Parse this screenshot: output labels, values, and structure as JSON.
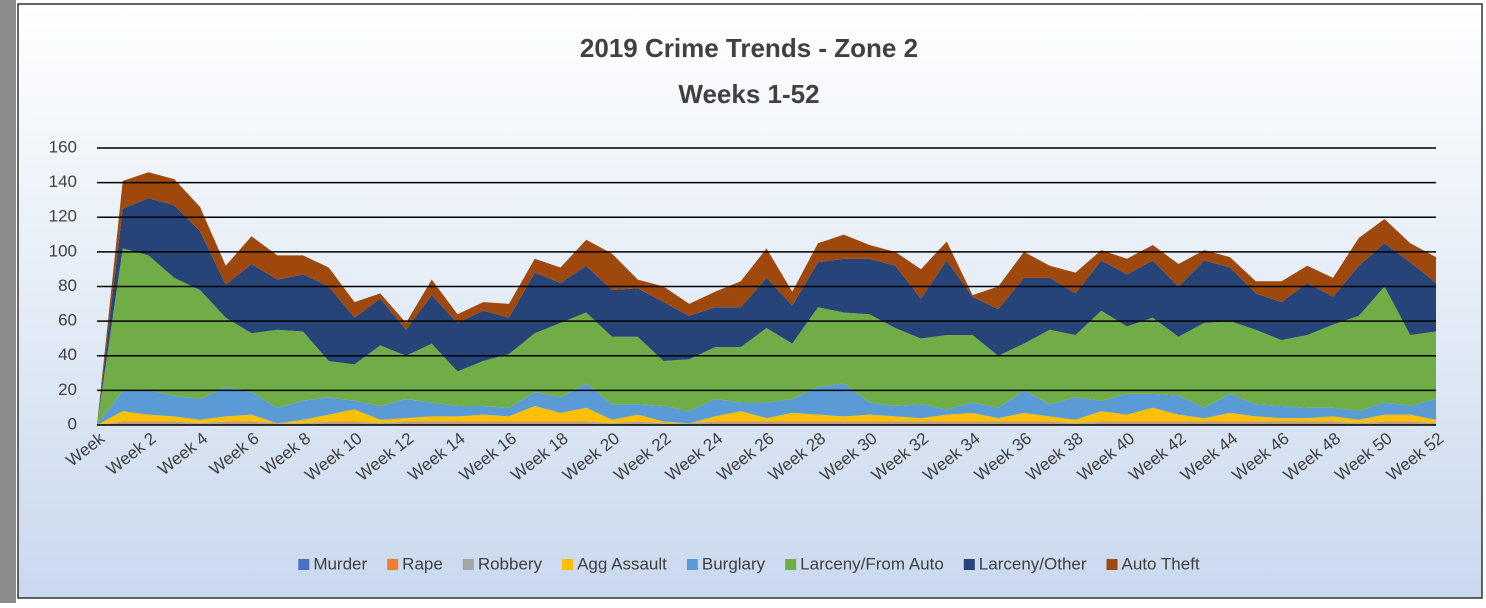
{
  "chart_data": {
    "type": "stacked_area",
    "title": "2019 Crime Trends - Zone 2",
    "subtitle": "Weeks 1-52",
    "categories": [
      "Week",
      null,
      "Week 2",
      null,
      "Week 4",
      null,
      "Week 6",
      null,
      "Week 8",
      null,
      "Week 10",
      null,
      "Week 12",
      null,
      "Week 14",
      null,
      "Week 16",
      null,
      "Week 18",
      null,
      "Week 20",
      null,
      "Week 22",
      null,
      "Week 24",
      null,
      "Week 26",
      null,
      "Week 28",
      null,
      "Week 30",
      null,
      "Week 32",
      null,
      "Week 34",
      null,
      "Week 36",
      null,
      "Week 38",
      null,
      "Week 40",
      null,
      "Week 42",
      null,
      "Week 44",
      null,
      "Week 46",
      null,
      "Week 48",
      null,
      "Week 50",
      null,
      "Week 52"
    ],
    "series": [
      {
        "name": "Murder",
        "color": "#4472c4",
        "values": [
          0,
          0,
          0,
          0,
          0,
          0,
          0,
          0,
          0,
          0,
          0,
          0,
          0,
          0,
          0,
          0,
          0,
          0,
          0,
          0,
          0,
          0,
          0,
          0,
          0,
          0,
          0,
          0,
          0,
          0,
          0,
          0,
          0,
          0,
          0,
          0,
          0,
          0,
          0,
          0,
          0,
          0,
          0,
          0,
          0,
          0,
          0,
          0,
          0,
          0,
          0,
          0,
          0
        ]
      },
      {
        "name": "Rape",
        "color": "#ed7d31",
        "values": [
          0,
          1,
          1,
          1,
          0,
          1,
          1,
          0,
          0,
          1,
          1,
          0,
          1,
          1,
          1,
          1,
          1,
          1,
          1,
          1,
          0,
          1,
          0,
          0,
          1,
          1,
          1,
          1,
          1,
          1,
          1,
          1,
          1,
          1,
          1,
          1,
          1,
          1,
          0,
          1,
          1,
          1,
          1,
          1,
          1,
          1,
          1,
          1,
          1,
          0,
          1,
          1,
          0
        ]
      },
      {
        "name": "Robbery",
        "color": "#a5a5a5",
        "values": [
          0,
          1,
          1,
          1,
          1,
          1,
          1,
          1,
          1,
          1,
          1,
          1,
          1,
          1,
          1,
          1,
          1,
          1,
          1,
          1,
          1,
          1,
          1,
          1,
          1,
          1,
          1,
          1,
          1,
          1,
          1,
          1,
          1,
          1,
          1,
          1,
          1,
          1,
          1,
          1,
          1,
          1,
          1,
          1,
          1,
          1,
          1,
          1,
          1,
          1,
          1,
          1,
          1
        ]
      },
      {
        "name": "Agg Assault",
        "color": "#ffc000",
        "values": [
          0,
          6,
          4,
          3,
          2,
          3,
          4,
          0,
          2,
          4,
          7,
          2,
          2,
          3,
          3,
          4,
          3,
          9,
          5,
          8,
          2,
          4,
          1,
          0,
          3,
          6,
          2,
          5,
          4,
          3,
          4,
          3,
          2,
          4,
          5,
          2,
          5,
          3,
          2,
          6,
          4,
          8,
          4,
          2,
          5,
          3,
          2,
          2,
          3,
          2,
          4,
          4,
          2
        ]
      },
      {
        "name": "Burglary",
        "color": "#5b9bd5",
        "values": [
          0,
          12,
          14,
          12,
          12,
          17,
          13,
          9,
          11,
          10,
          5,
          8,
          11,
          8,
          6,
          5,
          5,
          8,
          9,
          14,
          9,
          6,
          9,
          7,
          10,
          5,
          9,
          8,
          16,
          19,
          7,
          6,
          8,
          3,
          6,
          6,
          13,
          7,
          13,
          6,
          12,
          8,
          11,
          6,
          11,
          7,
          7,
          6,
          5,
          5,
          7,
          5,
          12
        ]
      },
      {
        "name": "Larceny/From Auto",
        "color": "#70ad47",
        "values": [
          0,
          82,
          78,
          68,
          63,
          40,
          34,
          45,
          40,
          21,
          21,
          35,
          25,
          34,
          20,
          26,
          31,
          34,
          43,
          41,
          39,
          39,
          26,
          30,
          30,
          32,
          43,
          32,
          46,
          41,
          51,
          45,
          38,
          43,
          39,
          30,
          27,
          43,
          36,
          52,
          39,
          44,
          34,
          49,
          42,
          43,
          38,
          42,
          48,
          55,
          67,
          41,
          39
        ]
      },
      {
        "name": "Larceny/Other",
        "color": "#264478",
        "values": [
          0,
          23,
          33,
          42,
          34,
          19,
          40,
          29,
          33,
          43,
          27,
          27,
          15,
          28,
          28,
          29,
          21,
          35,
          23,
          27,
          27,
          28,
          34,
          25,
          23,
          23,
          29,
          22,
          26,
          31,
          32,
          36,
          23,
          43,
          22,
          27,
          38,
          30,
          24,
          29,
          30,
          33,
          29,
          36,
          31,
          21,
          22,
          30,
          16,
          29,
          25,
          42,
          28
        ]
      },
      {
        "name": "Auto Theft",
        "color": "#9e480e",
        "values": [
          0,
          16,
          15,
          15,
          14,
          11,
          16,
          14,
          11,
          11,
          9,
          3,
          4,
          9,
          5,
          5,
          8,
          8,
          9,
          15,
          21,
          5,
          9,
          7,
          9,
          15,
          17,
          8,
          11,
          14,
          8,
          8,
          17,
          11,
          1,
          13,
          15,
          7,
          12,
          6,
          9,
          9,
          13,
          6,
          6,
          7,
          12,
          10,
          11,
          16,
          14,
          11,
          15
        ]
      }
    ],
    "ylim": [
      0,
      160
    ],
    "yticks": [
      0,
      20,
      40,
      60,
      80,
      100,
      120,
      140,
      160
    ],
    "grid": true,
    "legend": "bottom"
  }
}
